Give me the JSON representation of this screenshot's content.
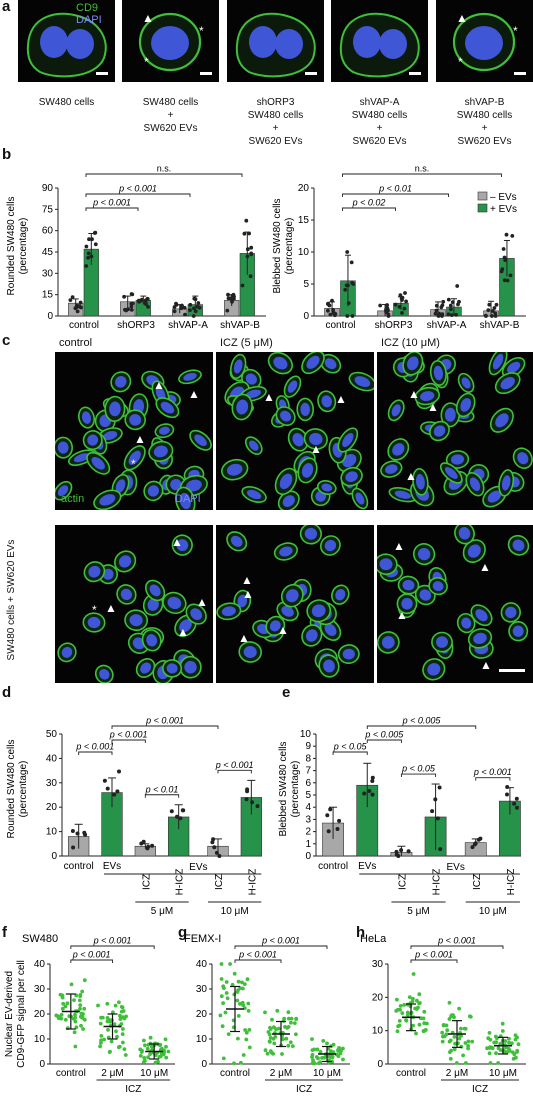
{
  "panel_labels": [
    "a",
    "b",
    "c",
    "d",
    "e",
    "f",
    "g",
    "h"
  ],
  "panel_a": {
    "stain_labels": [
      "CD9",
      "DAPI"
    ],
    "colors": {
      "cd9": "#3fbf3a",
      "dapi": "#3f56d6",
      "background": "#040404"
    },
    "captions": [
      [
        "SW480 cells"
      ],
      [
        "SW480 cells",
        "+",
        "SW620 EVs"
      ],
      [
        "shORP3",
        "SW480 cells",
        "+",
        "SW620 EVs"
      ],
      [
        "shVAP-A",
        "SW480 cells",
        "+",
        "SW620 EVs"
      ],
      [
        "shVAP-B",
        "SW480 cells",
        "+",
        "SW620 EVs"
      ]
    ],
    "marks": [
      "▲",
      "*"
    ]
  },
  "panel_c": {
    "column_labels": [
      "control",
      "ICZ (5 μM)",
      "ICZ (10 μM)"
    ],
    "row_labels": [
      "SW480 cells",
      "SW480 cells + SW620 EVs"
    ],
    "stain_labels": [
      "actin",
      "DAPI"
    ],
    "colors": {
      "actin": "#3fbf3a",
      "dapi": "#3f56d6"
    }
  },
  "chart_data": [
    {
      "id": "b-left",
      "type": "bar",
      "ylabel": "Rounded SW480 cells (percentage)",
      "categories": [
        "control",
        "shORP3",
        "shVAP-A",
        "shVAP-B"
      ],
      "yticks": [
        0,
        15,
        30,
        45,
        60,
        75,
        90
      ],
      "ylim": [
        0,
        90
      ],
      "series": [
        {
          "name": "– EVs",
          "color": "#a8a8a8",
          "values": [
            9,
            10,
            5,
            11
          ],
          "errors": [
            3,
            4,
            3,
            4
          ]
        },
        {
          "name": "+ EVs",
          "color": "#27924a",
          "values": [
            47,
            11,
            8,
            44
          ],
          "errors": [
            11,
            3,
            6,
            15
          ]
        }
      ],
      "brackets": [
        {
          "from": 0,
          "to": 1,
          "label": "p < 0.001"
        },
        {
          "from": 0,
          "to": 2,
          "label": "p < 0.001"
        },
        {
          "from": 0,
          "to": 3,
          "label": "n.s."
        }
      ]
    },
    {
      "id": "b-right",
      "type": "bar",
      "ylabel": "Blebbed SW480 cells (percentage)",
      "categories": [
        "control",
        "shORP3",
        "shVAP-A",
        "shVAP-B"
      ],
      "yticks": [
        0,
        5,
        10,
        15,
        20
      ],
      "ylim": [
        0,
        20
      ],
      "legend": {
        "placement": "top-right",
        "entries": [
          "– EVs",
          "+ EVs"
        ]
      },
      "series": [
        {
          "name": "– EVs",
          "color": "#a8a8a8",
          "values": [
            1.2,
            0.8,
            1.0,
            0.8
          ],
          "errors": [
            1,
            1,
            1.2,
            1.5
          ]
        },
        {
          "name": "+ EVs",
          "color": "#27924a",
          "values": [
            5.5,
            2.0,
            1.4,
            9.0
          ],
          "errors": [
            4,
            1,
            1.3,
            2.8
          ]
        }
      ],
      "brackets": [
        {
          "from": 0,
          "to": 1,
          "label": "p < 0.02"
        },
        {
          "from": 0,
          "to": 2,
          "label": "p < 0.01"
        },
        {
          "from": 0,
          "to": 3,
          "label": "n.s."
        }
      ]
    },
    {
      "id": "d",
      "type": "bar",
      "ylabel": "Rounded SW480 cells (percentage)",
      "categories": [
        "control",
        "EVs",
        "ICZ",
        "H-ICZ",
        "ICZ",
        "H-ICZ"
      ],
      "group_label": "EVs",
      "dose_labels": [
        "5 μM",
        "10 μM"
      ],
      "yticks": [
        0,
        10,
        20,
        30,
        40,
        50
      ],
      "ylim": [
        0,
        50
      ],
      "colors": [
        "#a8a8a8",
        "#27924a",
        "#a8a8a8",
        "#27924a",
        "#a8a8a8",
        "#27924a"
      ],
      "values": [
        8,
        26,
        4,
        16,
        4,
        24
      ],
      "errors": [
        5,
        6,
        1,
        5,
        3,
        7
      ],
      "brackets": [
        {
          "from": 0,
          "to": 1,
          "label": "p < 0.001"
        },
        {
          "from": 2,
          "to": 3,
          "label": "p < 0.01"
        },
        {
          "from": 4,
          "to": 5,
          "label": "p < 0.001"
        },
        {
          "from": 1,
          "to": 2,
          "label": "p < 0.001"
        },
        {
          "from": 1,
          "to": 4,
          "label": "p < 0.001"
        }
      ]
    },
    {
      "id": "e",
      "type": "bar",
      "ylabel": "Blebbed SW480 cells (percentage)",
      "categories": [
        "control",
        "EVs",
        "ICZ",
        "H-ICZ",
        "ICZ",
        "H-ICZ"
      ],
      "group_label": "EVs",
      "dose_labels": [
        "5 μM",
        "10 μM"
      ],
      "yticks": [
        0,
        1,
        2,
        3,
        4,
        5,
        6,
        7,
        8,
        9,
        10
      ],
      "ylim": [
        0,
        10
      ],
      "colors": [
        "#a8a8a8",
        "#27924a",
        "#a8a8a8",
        "#27924a",
        "#a8a8a8",
        "#27924a"
      ],
      "values": [
        2.7,
        5.8,
        0.3,
        3.2,
        1.1,
        4.5
      ],
      "errors": [
        1.3,
        1.8,
        0.5,
        2.7,
        0.3,
        1.1
      ],
      "brackets": [
        {
          "from": 0,
          "to": 1,
          "label": "p < 0.05"
        },
        {
          "from": 2,
          "to": 3,
          "label": "p < 0.05"
        },
        {
          "from": 4,
          "to": 5,
          "label": "p < 0.001"
        },
        {
          "from": 1,
          "to": 2,
          "label": "p < 0.005"
        },
        {
          "from": 1,
          "to": 4,
          "label": "p < 0.005"
        }
      ]
    },
    {
      "id": "f",
      "type": "scatter",
      "title": "SW480",
      "ylabel": "Nuclear EV-derived CD9-GFP signal per cell",
      "categories": [
        "control",
        "2 μM",
        "10 μM"
      ],
      "xlabel": "ICZ",
      "yticks": [
        0,
        10,
        20,
        30,
        40
      ],
      "ylim": [
        0,
        40
      ],
      "means": [
        21,
        15,
        5
      ],
      "sds": [
        7,
        5,
        3
      ],
      "brackets": [
        {
          "from": 0,
          "to": 1,
          "label": "p < 0.001"
        },
        {
          "from": 0,
          "to": 2,
          "label": "p < 0.001"
        }
      ]
    },
    {
      "id": "g",
      "type": "scatter",
      "title": "FEMX-I",
      "categories": [
        "control",
        "2 μM",
        "10 μM"
      ],
      "xlabel": "ICZ",
      "yticks": [
        0,
        10,
        20,
        30,
        40
      ],
      "ylim": [
        0,
        40
      ],
      "means": [
        22,
        12,
        4
      ],
      "sds": [
        9,
        5,
        3
      ],
      "brackets": [
        {
          "from": 0,
          "to": 1,
          "label": "p < 0.001"
        },
        {
          "from": 0,
          "to": 2,
          "label": "p < 0.001"
        }
      ]
    },
    {
      "id": "h",
      "type": "scatter",
      "title": "HeLa",
      "categories": [
        "control",
        "2 μM",
        "10 μM"
      ],
      "xlabel": "ICZ",
      "yticks": [
        0,
        10,
        20,
        30
      ],
      "ylim": [
        0,
        30
      ],
      "means": [
        14,
        9,
        5.5
      ],
      "sds": [
        4,
        4,
        2.5
      ],
      "brackets": [
        {
          "from": 0,
          "to": 1,
          "label": "p < 0.001"
        },
        {
          "from": 0,
          "to": 2,
          "label": "p < 0.001"
        }
      ]
    }
  ]
}
